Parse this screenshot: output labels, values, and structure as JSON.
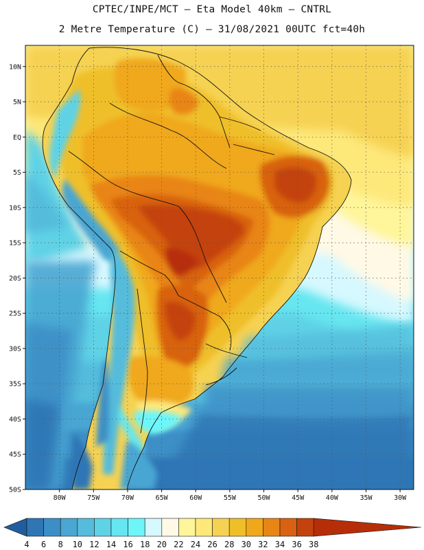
{
  "header": {
    "line1": "CPTEC/INPE/MCT –  Eta Model 40km – CNTRL",
    "line2": "2 Metre Temperature (C) – 31/08/2021 00UTC fct=40h"
  },
  "map": {
    "lat_range": [
      -50,
      13
    ],
    "lon_range": [
      -85,
      -28
    ],
    "lat_labels": [
      {
        "value": 10,
        "text": "10N"
      },
      {
        "value": 5,
        "text": "5N"
      },
      {
        "value": 0,
        "text": "EQ"
      },
      {
        "value": -5,
        "text": "5S"
      },
      {
        "value": -10,
        "text": "10S"
      },
      {
        "value": -15,
        "text": "15S"
      },
      {
        "value": -20,
        "text": "20S"
      },
      {
        "value": -25,
        "text": "25S"
      },
      {
        "value": -30,
        "text": "30S"
      },
      {
        "value": -35,
        "text": "35S"
      },
      {
        "value": -40,
        "text": "40S"
      },
      {
        "value": -45,
        "text": "45S"
      },
      {
        "value": -50,
        "text": "50S"
      }
    ],
    "lon_labels": [
      {
        "value": -80,
        "text": "80W"
      },
      {
        "value": -75,
        "text": "75W"
      },
      {
        "value": -70,
        "text": "70W"
      },
      {
        "value": -65,
        "text": "65W"
      },
      {
        "value": -60,
        "text": "60W"
      },
      {
        "value": -55,
        "text": "55W"
      },
      {
        "value": -50,
        "text": "50W"
      },
      {
        "value": -45,
        "text": "45W"
      },
      {
        "value": -40,
        "text": "40W"
      },
      {
        "value": -35,
        "text": "35W"
      },
      {
        "value": -30,
        "text": "30W"
      }
    ]
  },
  "colorbar": {
    "levels": [
      "4",
      "6",
      "8",
      "10",
      "12",
      "14",
      "16",
      "18",
      "20",
      "22",
      "24",
      "26",
      "28",
      "30",
      "32",
      "34",
      "36",
      "38"
    ],
    "colors": [
      "#1f5d9e",
      "#2f76b5",
      "#3c8fc6",
      "#4aa6d2",
      "#55bcdc",
      "#5fd2e6",
      "#66e6f0",
      "#6cf6fa",
      "#d6f8ff",
      "#fff9e6",
      "#fff59a",
      "#fde87a",
      "#f6d252",
      "#efbf2a",
      "#f0a81a",
      "#e88515",
      "#d86211",
      "#c4420c",
      "#b62e08"
    ]
  },
  "isotherm_regions": [
    {
      "level": "18",
      "zone": "southern-ocean-transition"
    },
    {
      "level": "28",
      "zone": "tropical-land"
    },
    {
      "level": "36",
      "zone": "central-brazil-heat-core"
    }
  ]
}
